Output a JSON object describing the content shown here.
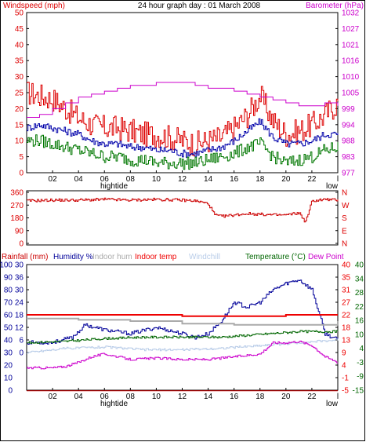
{
  "title": "24 hour graph day : 01 March 2008",
  "colors": {
    "windspeed": "#dd0000",
    "gust": "#dd0000",
    "avg": "#0000aa",
    "wind_low": "#007700",
    "barometer": "#cc00cc",
    "direction": "#cc0000",
    "humidity": "#000099",
    "indoor_hum": "#aaaaaa",
    "indoor_temp": "#ee0000",
    "windchill": "#b8cce8",
    "temperature": "#006600",
    "dew_point": "#cc00cc",
    "rainfall": "#cc0000",
    "frame": "#000000"
  },
  "chart_data": [
    {
      "type": "line",
      "labels": {
        "left": "Windspeed (mph)",
        "right": "Barometer (hPa)"
      },
      "y_left_ticks": [
        "50",
        "45",
        "40",
        "35",
        "30",
        "25",
        "20",
        "15",
        "10",
        "5",
        "0"
      ],
      "y_left_range": [
        0,
        50
      ],
      "y_right_ticks": [
        "1032",
        "1027",
        "1021",
        "1016",
        "1010",
        "1005",
        "999",
        "994",
        "988",
        "983",
        "977"
      ],
      "y_right_range": [
        977,
        1032
      ],
      "x_ticks": [
        "02",
        "04",
        "06",
        "08",
        "10",
        "12",
        "14",
        "16",
        "18",
        "20",
        "22",
        "l"
      ],
      "x_sublabels": {
        "left": "hightide",
        "right": "low"
      },
      "series": [
        {
          "name": "Windspeed (mph)",
          "key": "gust",
          "axis": "left",
          "x": [
            0,
            1,
            2,
            3,
            4,
            5,
            6,
            7,
            8,
            9,
            10,
            11,
            12,
            13,
            14,
            15,
            16,
            17,
            18,
            19,
            20,
            21,
            22,
            23,
            24
          ],
          "y": [
            25,
            24,
            23,
            20,
            17,
            15,
            14,
            14,
            13,
            12,
            12,
            11,
            10,
            9,
            10,
            11,
            14,
            18,
            24,
            16,
            12,
            13,
            15,
            18,
            22
          ]
        },
        {
          "key": "avg",
          "axis": "left",
          "x": [
            0,
            1,
            2,
            3,
            4,
            5,
            6,
            7,
            8,
            9,
            10,
            11,
            12,
            13,
            14,
            15,
            16,
            17,
            18,
            19,
            20,
            21,
            22,
            23,
            24
          ],
          "y": [
            14,
            15,
            14,
            13,
            12,
            10,
            9,
            9,
            8,
            8,
            7,
            7,
            6,
            6,
            7,
            8,
            10,
            13,
            16,
            11,
            9,
            9,
            10,
            12,
            12
          ]
        },
        {
          "key": "wind_low",
          "axis": "left",
          "x": [
            0,
            1,
            2,
            3,
            4,
            5,
            6,
            7,
            8,
            9,
            10,
            11,
            12,
            13,
            14,
            15,
            16,
            17,
            18,
            19,
            20,
            21,
            22,
            23,
            24
          ],
          "y": [
            10,
            10,
            9,
            8,
            7,
            6,
            5,
            5,
            4,
            4,
            3,
            3,
            3,
            3,
            4,
            5,
            6,
            8,
            9,
            5,
            3,
            4,
            5,
            7,
            8
          ]
        },
        {
          "name": "Barometer (hPa)",
          "key": "barometer",
          "axis": "right",
          "x": [
            0,
            1,
            2,
            3,
            4,
            5,
            6,
            7,
            8,
            9,
            10,
            11,
            12,
            13,
            14,
            15,
            16,
            17,
            18,
            19,
            20,
            21,
            22,
            23,
            24
          ],
          "y": [
            996,
            997,
            999,
            1001,
            1003,
            1004,
            1005,
            1006,
            1007,
            1007,
            1008,
            1008,
            1008,
            1007,
            1006,
            1006,
            1005,
            1004,
            1003,
            1002,
            1001,
            1000,
            1000,
            1001,
            1000
          ]
        }
      ]
    },
    {
      "type": "line",
      "labels": {
        "left": "",
        "right": ""
      },
      "y_left_ticks": [
        "360",
        "270",
        "180",
        "90",
        "0"
      ],
      "y_left_range": [
        0,
        360
      ],
      "y_right_ticks": [
        "N",
        "W",
        "S",
        "E",
        "N"
      ],
      "series": [
        {
          "key": "direction",
          "axis": "left",
          "x": [
            0,
            2,
            4,
            6,
            8,
            10,
            12,
            13,
            14,
            14.5,
            15,
            16,
            17,
            18,
            19,
            20,
            21,
            21.5,
            22,
            23,
            24
          ],
          "y": [
            300,
            305,
            305,
            310,
            305,
            310,
            305,
            300,
            280,
            200,
            190,
            200,
            210,
            205,
            200,
            200,
            215,
            150,
            300,
            310,
            305
          ]
        }
      ]
    },
    {
      "type": "line",
      "labels": {
        "rainfall": "Rainfall (mm)",
        "humidity": "Humidity %",
        "indoor_hum": "Indoor hum",
        "indoor_temp": "Indoor temp",
        "windchill": "Windchill",
        "temperature": "Temperature (°C)",
        "dew_point": "Dew Point"
      },
      "y_left1_ticks": [
        "100",
        "90",
        "80",
        "70",
        "60",
        "50",
        "40",
        "30",
        "20",
        "10",
        "0"
      ],
      "y_left2_ticks": [
        "30",
        "36",
        "30",
        "24",
        "18",
        "12",
        "6",
        "0"
      ],
      "y_right1_ticks": [
        "40",
        "35",
        "31",
        "27",
        "22",
        "18",
        "13",
        "9",
        "4",
        "-1",
        "-5"
      ],
      "y_right2_ticks": [
        "40",
        "34",
        "28",
        "22",
        "16",
        "10",
        "4",
        "-3",
        "-9",
        "-15"
      ],
      "y_left_range": [
        0,
        100
      ],
      "y_right_range": [
        -5,
        40
      ],
      "series": [
        {
          "key": "humidity",
          "axis": "left",
          "x": [
            0,
            2,
            3.5,
            4.5,
            6,
            8,
            10,
            12,
            13,
            14,
            15,
            16,
            17,
            18,
            19,
            20,
            21,
            22,
            23,
            24
          ],
          "y": [
            38,
            38,
            42,
            52,
            48,
            45,
            50,
            45,
            42,
            45,
            55,
            70,
            66,
            70,
            80,
            85,
            88,
            80,
            45,
            40
          ]
        },
        {
          "key": "indoor_hum",
          "axis": "left",
          "x": [
            0,
            4,
            8,
            12,
            16,
            20,
            24
          ],
          "y": [
            57,
            56,
            55,
            53,
            52,
            52,
            55
          ]
        },
        {
          "key": "indoor_temp",
          "axis": "right",
          "x": [
            0,
            6,
            12,
            16,
            20,
            24
          ],
          "y": [
            22,
            22,
            21.5,
            21.5,
            22,
            22
          ]
        },
        {
          "key": "windchill",
          "axis": "right",
          "x": [
            0,
            3,
            6,
            9,
            12,
            15,
            18,
            21,
            24
          ],
          "y": [
            8.5,
            10,
            10.5,
            9.5,
            9.5,
            10,
            11,
            12,
            13
          ]
        },
        {
          "key": "temperature",
          "axis": "right",
          "x": [
            0,
            3,
            6,
            9,
            12,
            15,
            18,
            21,
            24
          ],
          "y": [
            12,
            12.5,
            13.5,
            14,
            14,
            14,
            15,
            16,
            16
          ]
        },
        {
          "key": "dew_point",
          "axis": "right",
          "x": [
            0,
            2,
            3,
            4,
            5,
            6,
            7,
            8,
            10,
            12,
            14,
            16,
            18,
            19,
            20,
            21,
            22,
            23,
            24
          ],
          "y": [
            3,
            3,
            3.5,
            5,
            7,
            8,
            7,
            6,
            6.5,
            6,
            6,
            7,
            8,
            12,
            12,
            12.5,
            11,
            7,
            5
          ]
        },
        {
          "key": "rainfall",
          "axis": "left",
          "x": [
            0,
            24
          ],
          "y": [
            0,
            0
          ]
        }
      ]
    }
  ]
}
